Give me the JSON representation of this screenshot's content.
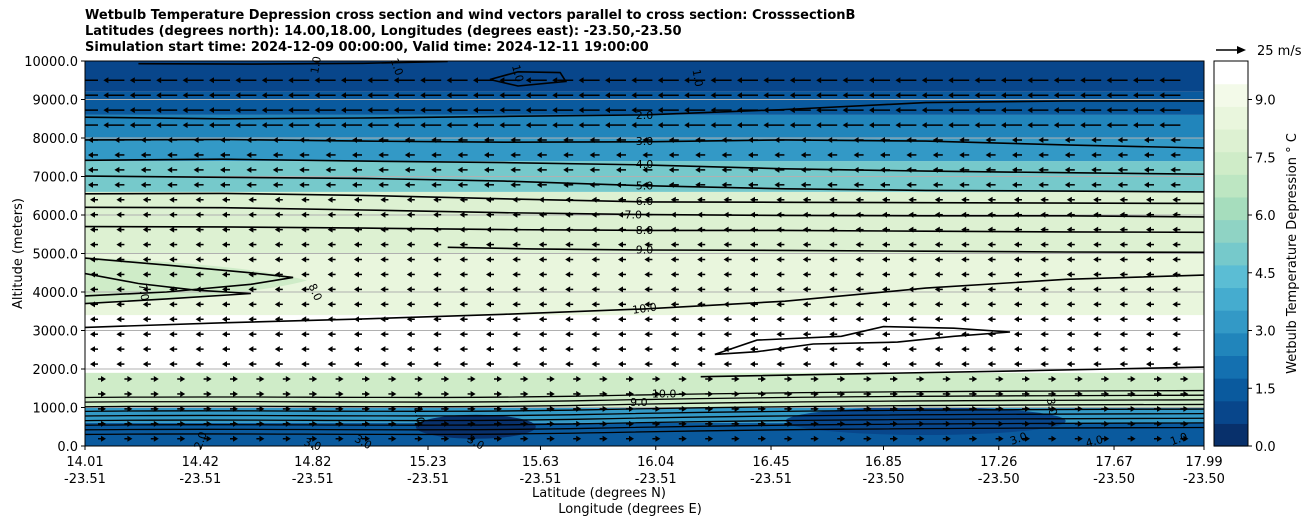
{
  "title_lines": [
    "Wetbulb Temperature Depression cross section and wind vectors parallel to cross section: CrosssectionB",
    "Latitudes (degrees north): 14.00,18.00, Longitudes (degrees east): -23.50,-23.50",
    "Simulation start time: 2024-12-09 00:00:00, Valid time: 2024-12-11 19:00:00"
  ],
  "chart_data": {
    "type": "contour",
    "title": "Wetbulb Temperature Depression cross section and wind vectors parallel to cross section: CrosssectionB",
    "ylabel": "Altitude (meters)",
    "xlabel_lat": "Latitude (degrees N)",
    "xlabel_lon": "Longitude (degrees E)",
    "ylim": [
      0,
      10000
    ],
    "y_ticks": [
      "0.0",
      "1000.0",
      "2000.0",
      "3000.0",
      "4000.0",
      "5000.0",
      "6000.0",
      "7000.0",
      "8000.0",
      "9000.0",
      "10000.0"
    ],
    "y_tick_values": [
      0,
      1000,
      2000,
      3000,
      4000,
      5000,
      6000,
      7000,
      8000,
      9000,
      10000
    ],
    "x_ticks": [
      {
        "lat": "14.01",
        "lon": "-23.51"
      },
      {
        "lat": "14.42",
        "lon": "-23.51"
      },
      {
        "lat": "14.82",
        "lon": "-23.51"
      },
      {
        "lat": "15.23",
        "lon": "-23.51"
      },
      {
        "lat": "15.63",
        "lon": "-23.51"
      },
      {
        "lat": "16.04",
        "lon": "-23.51"
      },
      {
        "lat": "16.45",
        "lon": "-23.51"
      },
      {
        "lat": "16.85",
        "lon": "-23.50"
      },
      {
        "lat": "17.26",
        "lon": "-23.50"
      },
      {
        "lat": "17.67",
        "lon": "-23.50"
      },
      {
        "lat": "17.99",
        "lon": "-23.50"
      }
    ],
    "x_tick_values": [
      14.01,
      14.42,
      14.82,
      15.23,
      15.63,
      16.04,
      16.45,
      16.85,
      17.26,
      17.67,
      17.99
    ],
    "xlim": [
      14.01,
      17.99
    ],
    "grid": "horizontal",
    "colorbar": {
      "label": "Wetbulb Temperature Depression ° C",
      "ticks": [
        "0.0",
        "1.5",
        "3.0",
        "4.5",
        "6.0",
        "7.5",
        "9.0"
      ],
      "tick_values": [
        0,
        1.5,
        3,
        4.5,
        6,
        7.5,
        9
      ],
      "range": [
        0,
        10
      ],
      "colors": [
        "#08306b",
        "#08468b",
        "#0a5a9e",
        "#1470b0",
        "#2185bb",
        "#3399c6",
        "#45accf",
        "#5bbdd4",
        "#76c9cb",
        "#8fd3c4",
        "#a6ddbd",
        "#bde6c2",
        "#cfecc8",
        "#ddf1d2",
        "#e9f6dd",
        "#f3fae9",
        "#ffffff"
      ]
    },
    "vector_key": "25 m/s",
    "contour_labels": [
      "1.0",
      "1.0",
      "1.0",
      "1.0",
      "2.0",
      "3.0",
      "4.0",
      "5.0",
      "6.0",
      "7.0",
      "8.0",
      "9.0",
      "10.0",
      "7.0",
      "8.0",
      "10.0",
      "9.0",
      "1.0",
      "2.0",
      "3.0",
      "3.0",
      "3.0",
      "3.0",
      "4.0",
      "3.0",
      "1.0"
    ],
    "contours": [
      {
        "level": 1.0,
        "points": [
          [
            14.2,
            9930
          ],
          [
            14.6,
            9920
          ],
          [
            15.0,
            9940
          ],
          [
            15.3,
            9990
          ]
        ]
      },
      {
        "level": 1.0,
        "points": [
          [
            15.45,
            9520
          ],
          [
            15.55,
            9720
          ],
          [
            15.7,
            9700
          ],
          [
            15.72,
            9470
          ],
          [
            15.55,
            9350
          ],
          [
            15.45,
            9520
          ]
        ]
      },
      {
        "level": 2.0,
        "points": [
          [
            14.01,
            8540
          ],
          [
            14.5,
            8500
          ],
          [
            15.0,
            8520
          ],
          [
            15.5,
            8560
          ],
          [
            16.0,
            8600
          ],
          [
            16.5,
            8740
          ],
          [
            17.0,
            8920
          ],
          [
            17.5,
            8960
          ],
          [
            17.99,
            8960
          ]
        ]
      },
      {
        "level": 3.0,
        "points": [
          [
            14.01,
            7950
          ],
          [
            14.5,
            7960
          ],
          [
            15.0,
            7920
          ],
          [
            15.5,
            7890
          ],
          [
            16.0,
            7900
          ],
          [
            16.5,
            7950
          ],
          [
            17.0,
            7920
          ],
          [
            17.5,
            7820
          ],
          [
            17.99,
            7740
          ]
        ]
      },
      {
        "level": 4.0,
        "points": [
          [
            14.01,
            7420
          ],
          [
            14.5,
            7450
          ],
          [
            15.0,
            7400
          ],
          [
            15.5,
            7360
          ],
          [
            16.0,
            7300
          ],
          [
            16.5,
            7200
          ],
          [
            17.0,
            7140
          ],
          [
            17.5,
            7100
          ],
          [
            17.99,
            7060
          ]
        ]
      },
      {
        "level": 5.0,
        "points": [
          [
            14.01,
            7010
          ],
          [
            14.5,
            6980
          ],
          [
            15.0,
            6950
          ],
          [
            15.5,
            6880
          ],
          [
            16.0,
            6760
          ],
          [
            16.5,
            6680
          ],
          [
            17.0,
            6640
          ],
          [
            17.5,
            6620
          ],
          [
            17.99,
            6600
          ]
        ]
      },
      {
        "level": 6.0,
        "points": [
          [
            14.01,
            6550
          ],
          [
            14.5,
            6560
          ],
          [
            15.0,
            6510
          ],
          [
            15.5,
            6420
          ],
          [
            16.0,
            6340
          ],
          [
            16.5,
            6330
          ],
          [
            17.0,
            6320
          ],
          [
            17.5,
            6310
          ],
          [
            17.99,
            6300
          ]
        ]
      },
      {
        "level": 7.0,
        "points": [
          [
            14.01,
            6200
          ],
          [
            14.5,
            6190
          ],
          [
            15.0,
            6130
          ],
          [
            15.5,
            6060
          ],
          [
            16.0,
            6010
          ],
          [
            16.5,
            5990
          ],
          [
            17.0,
            5980
          ],
          [
            17.5,
            5980
          ],
          [
            17.99,
            5950
          ]
        ]
      },
      {
        "level": 8.0,
        "points": [
          [
            14.01,
            5700
          ],
          [
            14.5,
            5690
          ],
          [
            15.0,
            5660
          ],
          [
            15.5,
            5620
          ],
          [
            16.0,
            5600
          ],
          [
            16.5,
            5600
          ],
          [
            17.0,
            5580
          ],
          [
            17.5,
            5560
          ],
          [
            17.99,
            5550
          ]
        ]
      },
      {
        "level": 9.0,
        "points": [
          [
            15.3,
            5160
          ],
          [
            15.6,
            5120
          ],
          [
            16.0,
            5090
          ],
          [
            16.5,
            5080
          ],
          [
            17.0,
            5060
          ],
          [
            17.5,
            5040
          ],
          [
            17.99,
            5030
          ]
        ]
      },
      {
        "level": 10.0,
        "points": [
          [
            14.01,
            3080
          ],
          [
            14.5,
            3200
          ],
          [
            15.0,
            3300
          ],
          [
            15.5,
            3420
          ],
          [
            16.0,
            3560
          ],
          [
            16.5,
            3760
          ],
          [
            17.0,
            4100
          ],
          [
            17.5,
            4330
          ],
          [
            17.99,
            4440
          ]
        ]
      },
      {
        "level": 7.0,
        "points": [
          [
            14.01,
            4480
          ],
          [
            14.2,
            4220
          ],
          [
            14.4,
            4050
          ],
          [
            14.6,
            3960
          ],
          [
            14.3,
            3820
          ],
          [
            14.01,
            3700
          ]
        ]
      },
      {
        "level": 8.0,
        "points": [
          [
            14.01,
            4880
          ],
          [
            14.3,
            4700
          ],
          [
            14.6,
            4500
          ],
          [
            14.75,
            4380
          ],
          [
            14.6,
            4200
          ],
          [
            14.3,
            4000
          ],
          [
            14.01,
            3900
          ]
        ]
      },
      {
        "level": 10.0,
        "points": [
          [
            16.25,
            2380
          ],
          [
            16.4,
            2750
          ],
          [
            16.7,
            2850
          ],
          [
            16.85,
            3100
          ],
          [
            17.1,
            3060
          ],
          [
            17.3,
            2960
          ],
          [
            17.1,
            2850
          ],
          [
            16.9,
            2700
          ],
          [
            16.6,
            2650
          ],
          [
            16.4,
            2450
          ],
          [
            16.25,
            2380
          ]
        ]
      },
      {
        "level": 9.0,
        "points": [
          [
            16.2,
            1800
          ],
          [
            16.8,
            1880
          ],
          [
            17.4,
            1960
          ],
          [
            17.99,
            2050
          ]
        ]
      }
    ],
    "wind_vectors": "leftward near top (~25 m/s), weak elsewhere"
  }
}
